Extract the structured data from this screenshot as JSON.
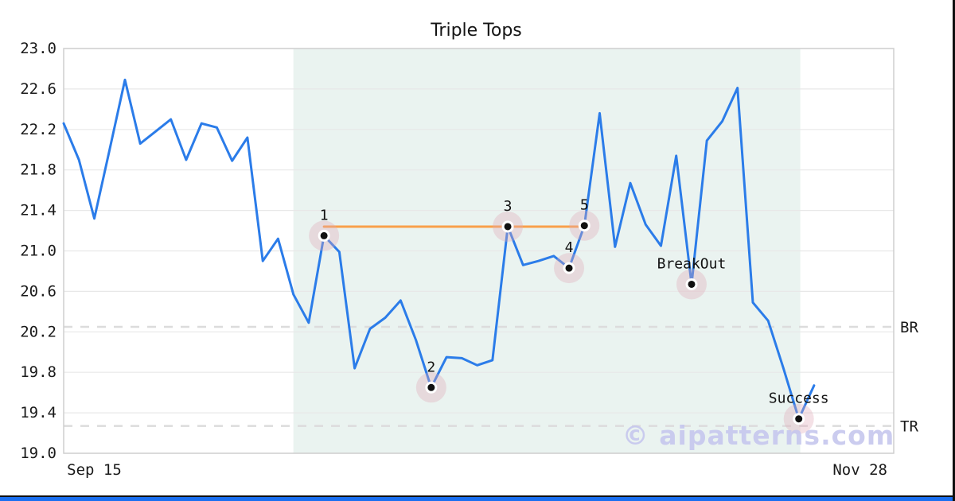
{
  "title": "Triple Tops",
  "watermark": "© aipatterns.com",
  "chart_data": {
    "type": "line",
    "title": "Triple Tops",
    "xlim": [
      0,
      54.2
    ],
    "ylim": [
      19.0,
      23.0
    ],
    "grid": "horizontal-only",
    "x_tick_labels": [
      {
        "index": 2,
        "label": "Sep 15"
      },
      {
        "index": 52,
        "label": "Nov 28"
      }
    ],
    "y_ticks": [
      {
        "value": 23.0,
        "label": "23.0"
      },
      {
        "value": 22.6,
        "label": "22.6"
      },
      {
        "value": 22.2,
        "label": "22.2"
      },
      {
        "value": 21.8,
        "label": "21.8"
      },
      {
        "value": 21.4,
        "label": "21.4"
      },
      {
        "value": 21.0,
        "label": "21.0"
      },
      {
        "value": 20.6,
        "label": "20.6"
      },
      {
        "value": 20.2,
        "label": "20.2"
      },
      {
        "value": 19.8,
        "label": "19.8"
      },
      {
        "value": 19.4,
        "label": "19.4"
      },
      {
        "value": 19.0,
        "label": "19.0"
      }
    ],
    "values": [
      22.26,
      21.9,
      21.32,
      22.0,
      22.69,
      22.06,
      22.18,
      22.3,
      21.9,
      22.26,
      22.22,
      21.89,
      22.12,
      20.9,
      21.12,
      20.57,
      20.29,
      21.15,
      20.99,
      19.84,
      20.23,
      20.34,
      20.51,
      20.12,
      19.65,
      19.95,
      19.94,
      19.87,
      19.92,
      21.24,
      20.86,
      20.9,
      20.95,
      20.83,
      21.25,
      22.36,
      21.04,
      21.67,
      21.26,
      21.05,
      21.94,
      20.67,
      22.09,
      22.28,
      22.61,
      20.49,
      20.31,
      19.84,
      19.34,
      19.67
    ],
    "shaded_region": {
      "start_index": 15,
      "end_index": 48.1
    },
    "neckline": {
      "from_index": 17,
      "to_index": 34,
      "level": 21.24
    },
    "levels": [
      {
        "label": "BR",
        "value": 20.25
      },
      {
        "label": "TR",
        "value": 19.27
      }
    ],
    "annotations": [
      {
        "index": 17,
        "label": "1"
      },
      {
        "index": 24,
        "label": "2"
      },
      {
        "index": 29,
        "label": "3"
      },
      {
        "index": 33,
        "label": "4"
      },
      {
        "index": 34,
        "label": "5"
      },
      {
        "index": 41,
        "label": "BreakOut"
      },
      {
        "index": 48,
        "label": "Success"
      }
    ],
    "colors": {
      "line": "#2b7ce9",
      "neckline": "#f9a04a",
      "shade": "#eaf3f0",
      "halo": "#dfa9b8",
      "dot": "#111111",
      "grid": "#e8e8e8",
      "plot_border": "#cfcfcf",
      "dashed_level": "#dcdcdc",
      "tick_text": "#1a1a1a",
      "annotation_text": "#111111",
      "watermark": "#c6c7ee",
      "footer": "#1a6ff0"
    }
  }
}
